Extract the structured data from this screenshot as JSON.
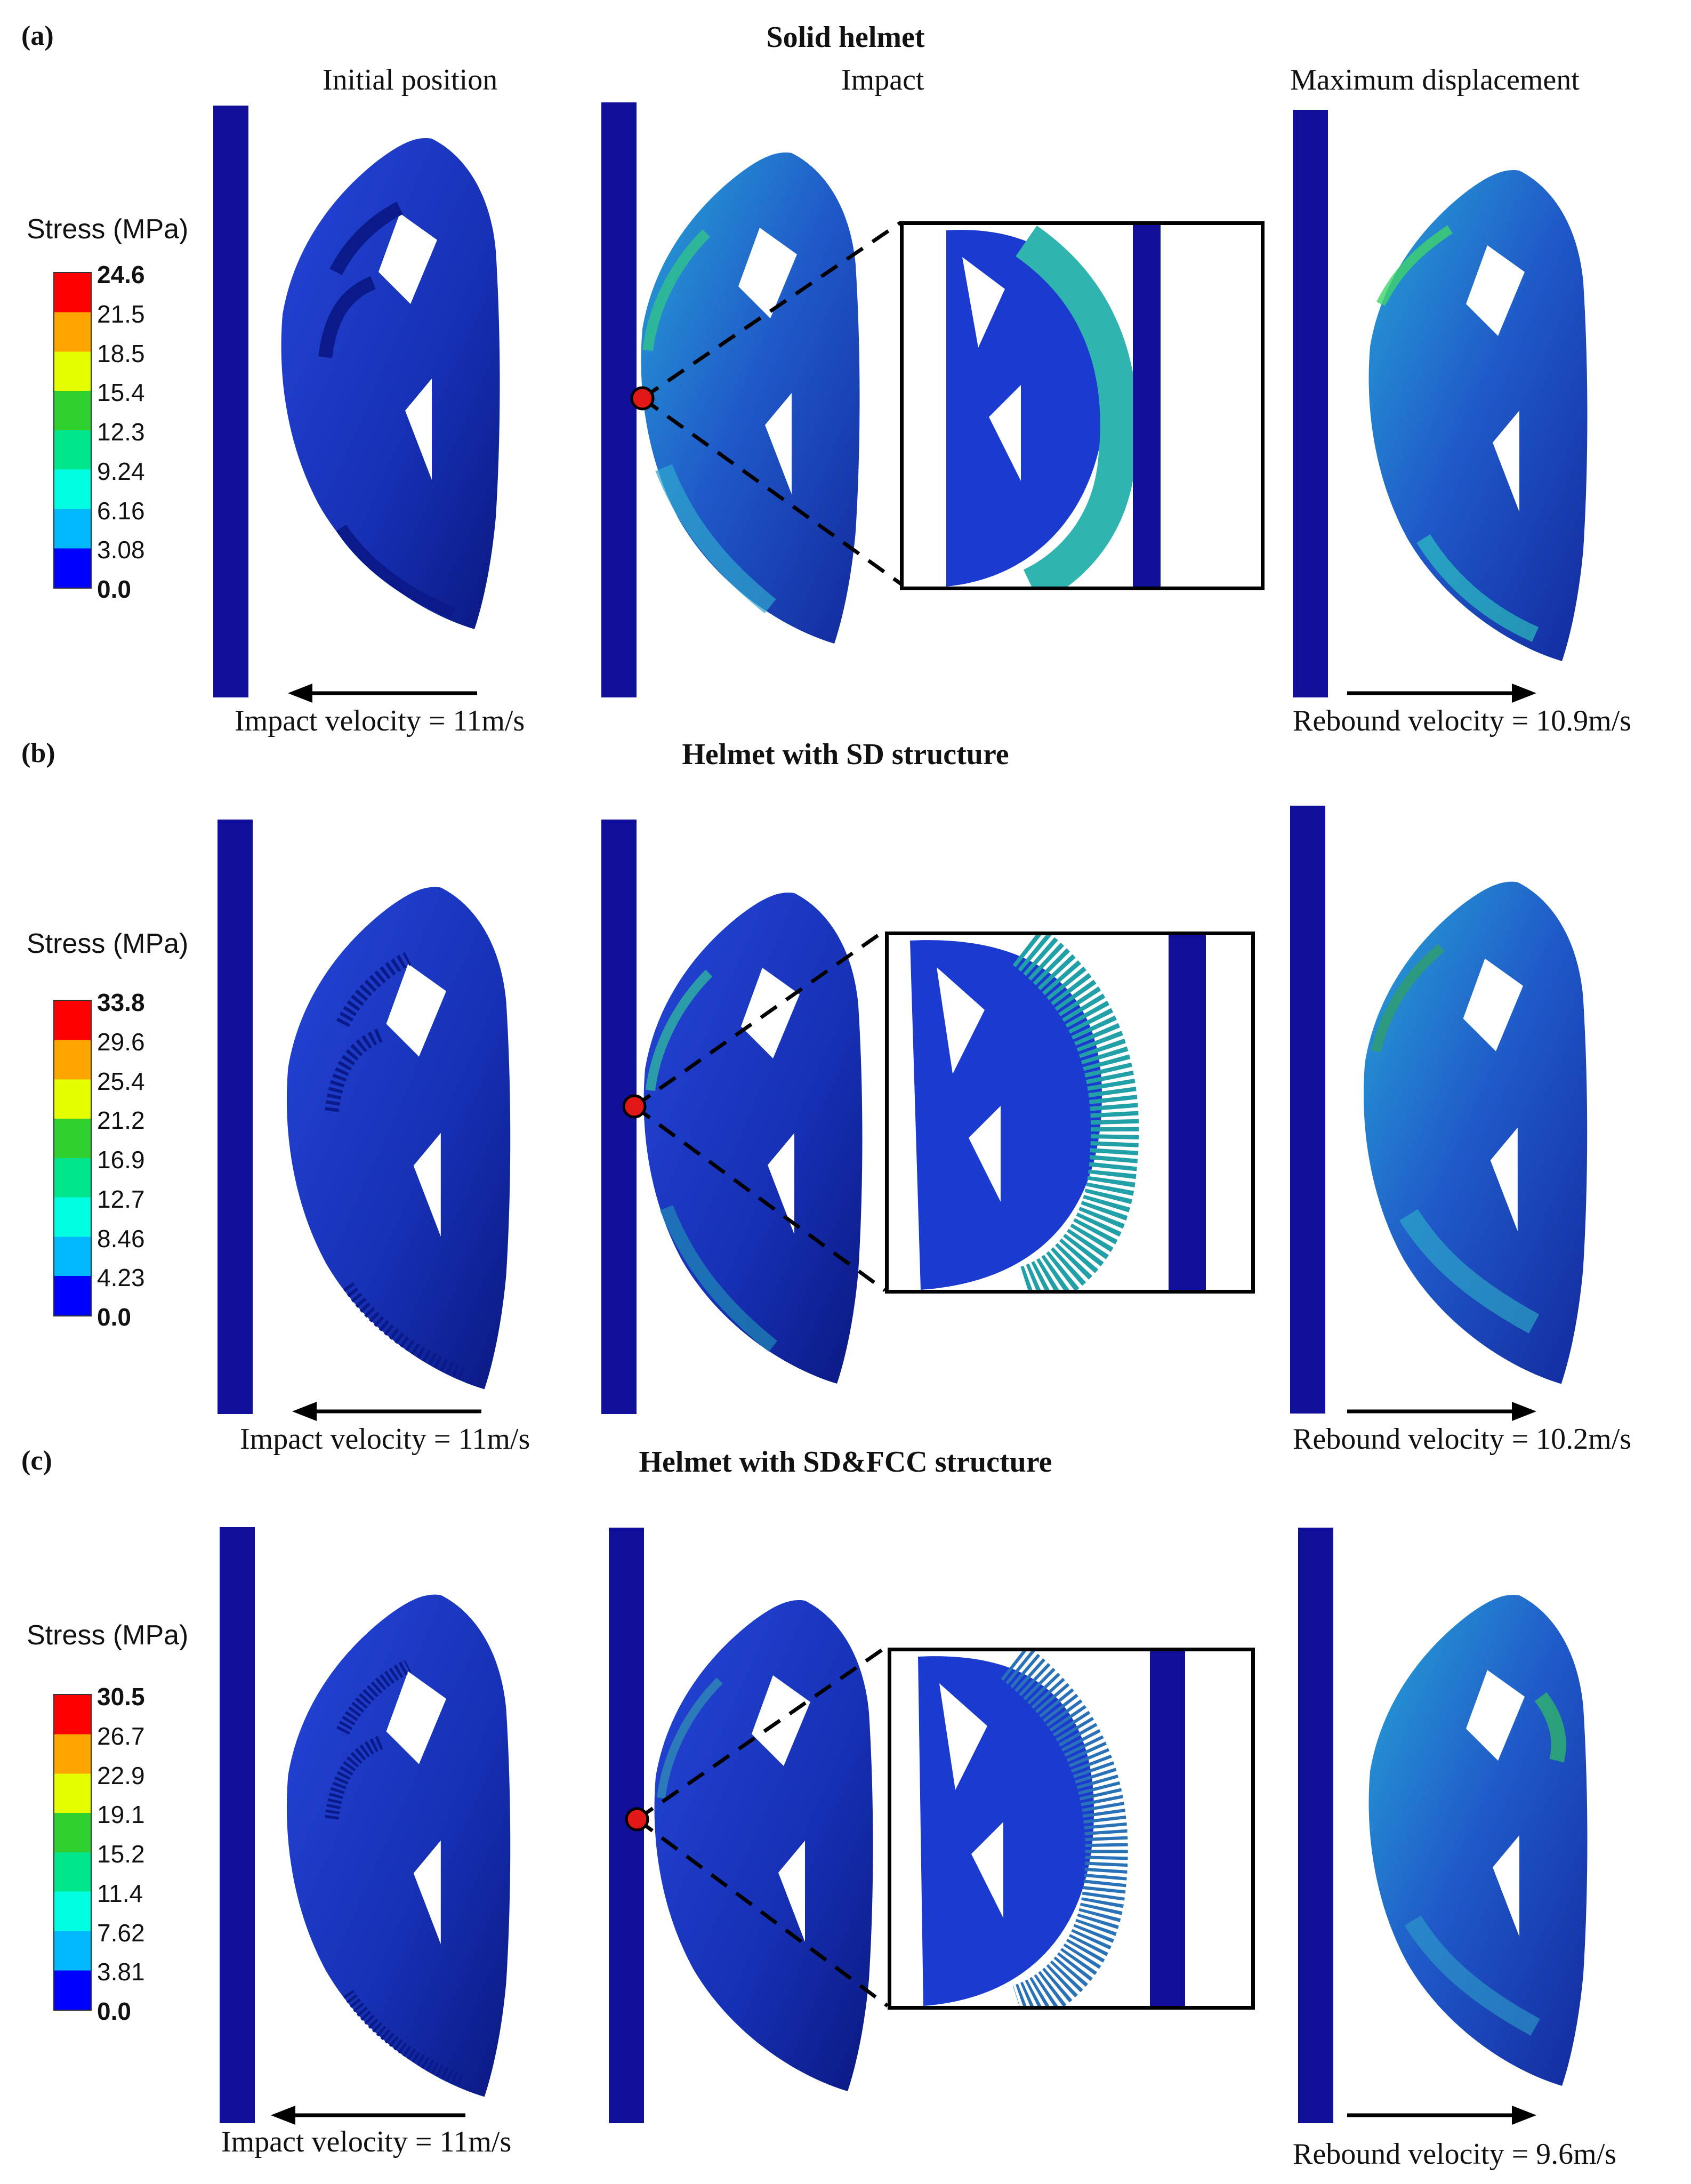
{
  "figure": {
    "column_headers": [
      "Initial position",
      "Impact",
      "Maximum displacement"
    ],
    "colors": {
      "plate": "#10109a",
      "helmet_dark": "#0c1f9e",
      "helmet_mid": "#1a3ad0",
      "marker": "#e01818"
    },
    "colormap_stops": [
      "#ff0000",
      "#ffa500",
      "#e6ff00",
      "#2ed12e",
      "#00e68c",
      "#00ffe0",
      "#00b8ff",
      "#0000ff"
    ],
    "panels": [
      {
        "letter": "(a)",
        "title": "Solid helmet",
        "stress_label": "Stress (MPa)",
        "ticks": [
          "24.6",
          "21.5",
          "18.5",
          "15.4",
          "12.3",
          "9.24",
          "6.16",
          "3.08",
          "0.0"
        ],
        "impact_velocity": "Impact velocity = 11m/s",
        "rebound_velocity": "Rebound velocity = 10.9m/s"
      },
      {
        "letter": "(b)",
        "title": "Helmet with SD structure",
        "stress_label": "Stress (MPa)",
        "ticks": [
          "33.8",
          "29.6",
          "25.4",
          "21.2",
          "16.9",
          "12.7",
          "8.46",
          "4.23",
          "0.0"
        ],
        "impact_velocity": "Impact velocity = 11m/s",
        "rebound_velocity": "Rebound velocity = 10.2m/s"
      },
      {
        "letter": "(c)",
        "title": "Helmet with SD&FCC structure",
        "stress_label": "Stress (MPa)",
        "ticks": [
          "30.5",
          "26.7",
          "22.9",
          "19.1",
          "15.2",
          "11.4",
          "7.62",
          "3.81",
          "0.0"
        ],
        "impact_velocity": "Impact velocity = 11m/s",
        "rebound_velocity": "Rebound velocity = 9.6m/s"
      }
    ]
  }
}
